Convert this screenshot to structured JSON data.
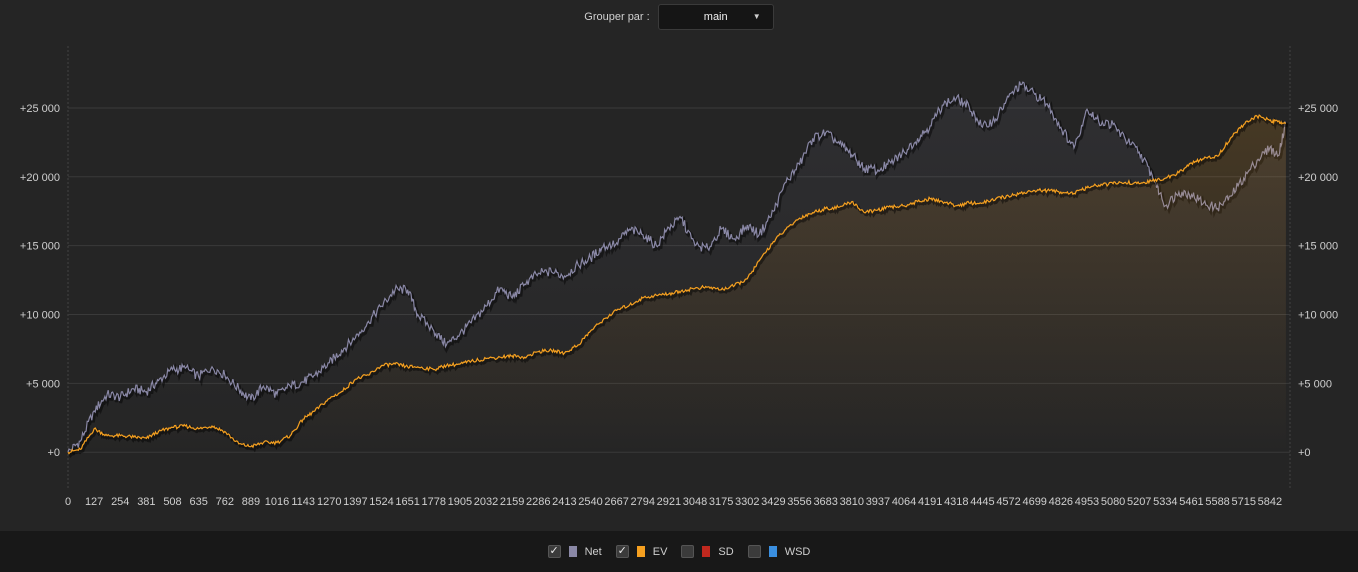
{
  "toolbar": {
    "group_label": "Grouper par :",
    "group_value": "main",
    "arrow_glyph": "▼"
  },
  "legend": [
    {
      "label": "Net",
      "checked": true,
      "color": "#8a88a6",
      "check": "✓"
    },
    {
      "label": "EV",
      "checked": true,
      "color": "#f5a020",
      "check": "✓"
    },
    {
      "label": "SD",
      "checked": false,
      "color": "#c0281e",
      "check": ""
    },
    {
      "label": "WSD",
      "checked": false,
      "color": "#3a8fe0",
      "check": ""
    }
  ],
  "chart_data": {
    "type": "line",
    "xlim": [
      0,
      5940
    ],
    "ylim": [
      -2600,
      29500
    ],
    "x_ticks": [
      0,
      127,
      254,
      381,
      508,
      635,
      762,
      889,
      1016,
      1143,
      1270,
      1397,
      1524,
      1651,
      1778,
      1905,
      2032,
      2159,
      2286,
      2413,
      2540,
      2667,
      2794,
      2921,
      3048,
      3175,
      3302,
      3429,
      3556,
      3683,
      3810,
      3937,
      4064,
      4191,
      4318,
      4445,
      4572,
      4699,
      4826,
      4953,
      5080,
      5207,
      5334,
      5461,
      5588,
      5715,
      5842
    ],
    "y_ticks": [
      0,
      5000,
      10000,
      15000,
      20000,
      25000
    ],
    "y_tick_labels": [
      "+0",
      "+5 000",
      "+10 000",
      "+15 000",
      "+20 000",
      "+25 000"
    ],
    "grid": true,
    "series": [
      {
        "name": "Net",
        "color": "#8a88a6",
        "x": [
          0,
          60,
          127,
          190,
          254,
          320,
          381,
          440,
          508,
          570,
          635,
          700,
          762,
          830,
          889,
          950,
          1016,
          1080,
          1143,
          1200,
          1270,
          1330,
          1397,
          1460,
          1524,
          1590,
          1651,
          1700,
          1778,
          1840,
          1905,
          1960,
          2032,
          2100,
          2159,
          2220,
          2286,
          2350,
          2413,
          2480,
          2540,
          2600,
          2667,
          2730,
          2794,
          2860,
          2921,
          2980,
          3048,
          3110,
          3175,
          3240,
          3302,
          3360,
          3429,
          3490,
          3556,
          3620,
          3683,
          3750,
          3810,
          3870,
          3937,
          4000,
          4064,
          4130,
          4191,
          4250,
          4318,
          4380,
          4445,
          4510,
          4572,
          4630,
          4699,
          4760,
          4826,
          4890,
          4953,
          5010,
          5080,
          5140,
          5207,
          5270,
          5334,
          5400,
          5461,
          5520,
          5588,
          5650,
          5715,
          5780,
          5842,
          5880,
          5920
        ],
        "values": [
          0,
          800,
          3000,
          4200,
          4000,
          4600,
          4400,
          5200,
          6000,
          6100,
          5500,
          6200,
          5600,
          4600,
          3800,
          4800,
          4200,
          4800,
          5100,
          5600,
          6500,
          7400,
          8300,
          9500,
          10600,
          11800,
          11800,
          10000,
          8800,
          7800,
          8600,
          9400,
          10600,
          11900,
          11200,
          12200,
          13000,
          13100,
          12800,
          13600,
          14100,
          14900,
          15200,
          16200,
          15800,
          15000,
          16300,
          17000,
          15000,
          14800,
          16200,
          15500,
          16500,
          15800,
          17500,
          19600,
          20900,
          22800,
          23200,
          22400,
          21600,
          20600,
          20500,
          21000,
          21800,
          22800,
          23700,
          25200,
          25700,
          25100,
          23600,
          24200,
          25800,
          26700,
          26000,
          25300,
          23600,
          22100,
          24900,
          24000,
          23800,
          22700,
          21800,
          20100,
          17900,
          18900,
          18700,
          18100,
          17700,
          18600,
          19900,
          21200,
          22100,
          21500,
          23900
        ]
      },
      {
        "name": "EV",
        "color": "#f5a020",
        "x": [
          0,
          60,
          127,
          190,
          254,
          320,
          381,
          440,
          508,
          570,
          635,
          700,
          762,
          830,
          889,
          950,
          1016,
          1080,
          1143,
          1200,
          1270,
          1330,
          1397,
          1460,
          1524,
          1590,
          1651,
          1700,
          1778,
          1840,
          1905,
          1960,
          2032,
          2100,
          2159,
          2220,
          2286,
          2350,
          2413,
          2480,
          2540,
          2600,
          2667,
          2730,
          2794,
          2860,
          2921,
          2980,
          3048,
          3110,
          3175,
          3240,
          3302,
          3360,
          3429,
          3490,
          3556,
          3620,
          3683,
          3750,
          3810,
          3870,
          3937,
          4000,
          4064,
          4130,
          4191,
          4250,
          4318,
          4380,
          4445,
          4510,
          4572,
          4630,
          4699,
          4760,
          4826,
          4890,
          4953,
          5010,
          5080,
          5140,
          5207,
          5270,
          5334,
          5400,
          5461,
          5520,
          5588,
          5650,
          5715,
          5780,
          5842,
          5880,
          5920
        ],
        "values": [
          0,
          200,
          1700,
          1200,
          1200,
          1100,
          1000,
          1500,
          1800,
          1900,
          1700,
          1900,
          1500,
          600,
          400,
          700,
          700,
          1200,
          2400,
          3000,
          3900,
          4400,
          5300,
          5600,
          6300,
          6400,
          6200,
          6200,
          6000,
          6300,
          6400,
          6600,
          6800,
          6900,
          7000,
          6900,
          7300,
          7400,
          7200,
          7800,
          8800,
          9600,
          10300,
          10700,
          11200,
          11400,
          11500,
          11700,
          11900,
          12000,
          11800,
          12100,
          12600,
          13900,
          15300,
          16200,
          17000,
          17400,
          17700,
          17800,
          18200,
          17400,
          17600,
          17800,
          17900,
          18200,
          18400,
          18200,
          17900,
          18100,
          18100,
          18400,
          18600,
          18800,
          19000,
          19000,
          18900,
          18800,
          19200,
          19400,
          19500,
          19600,
          19500,
          19700,
          19900,
          20300,
          21000,
          21300,
          21500,
          22800,
          23800,
          24400,
          24100,
          24000,
          23900
        ]
      }
    ]
  }
}
